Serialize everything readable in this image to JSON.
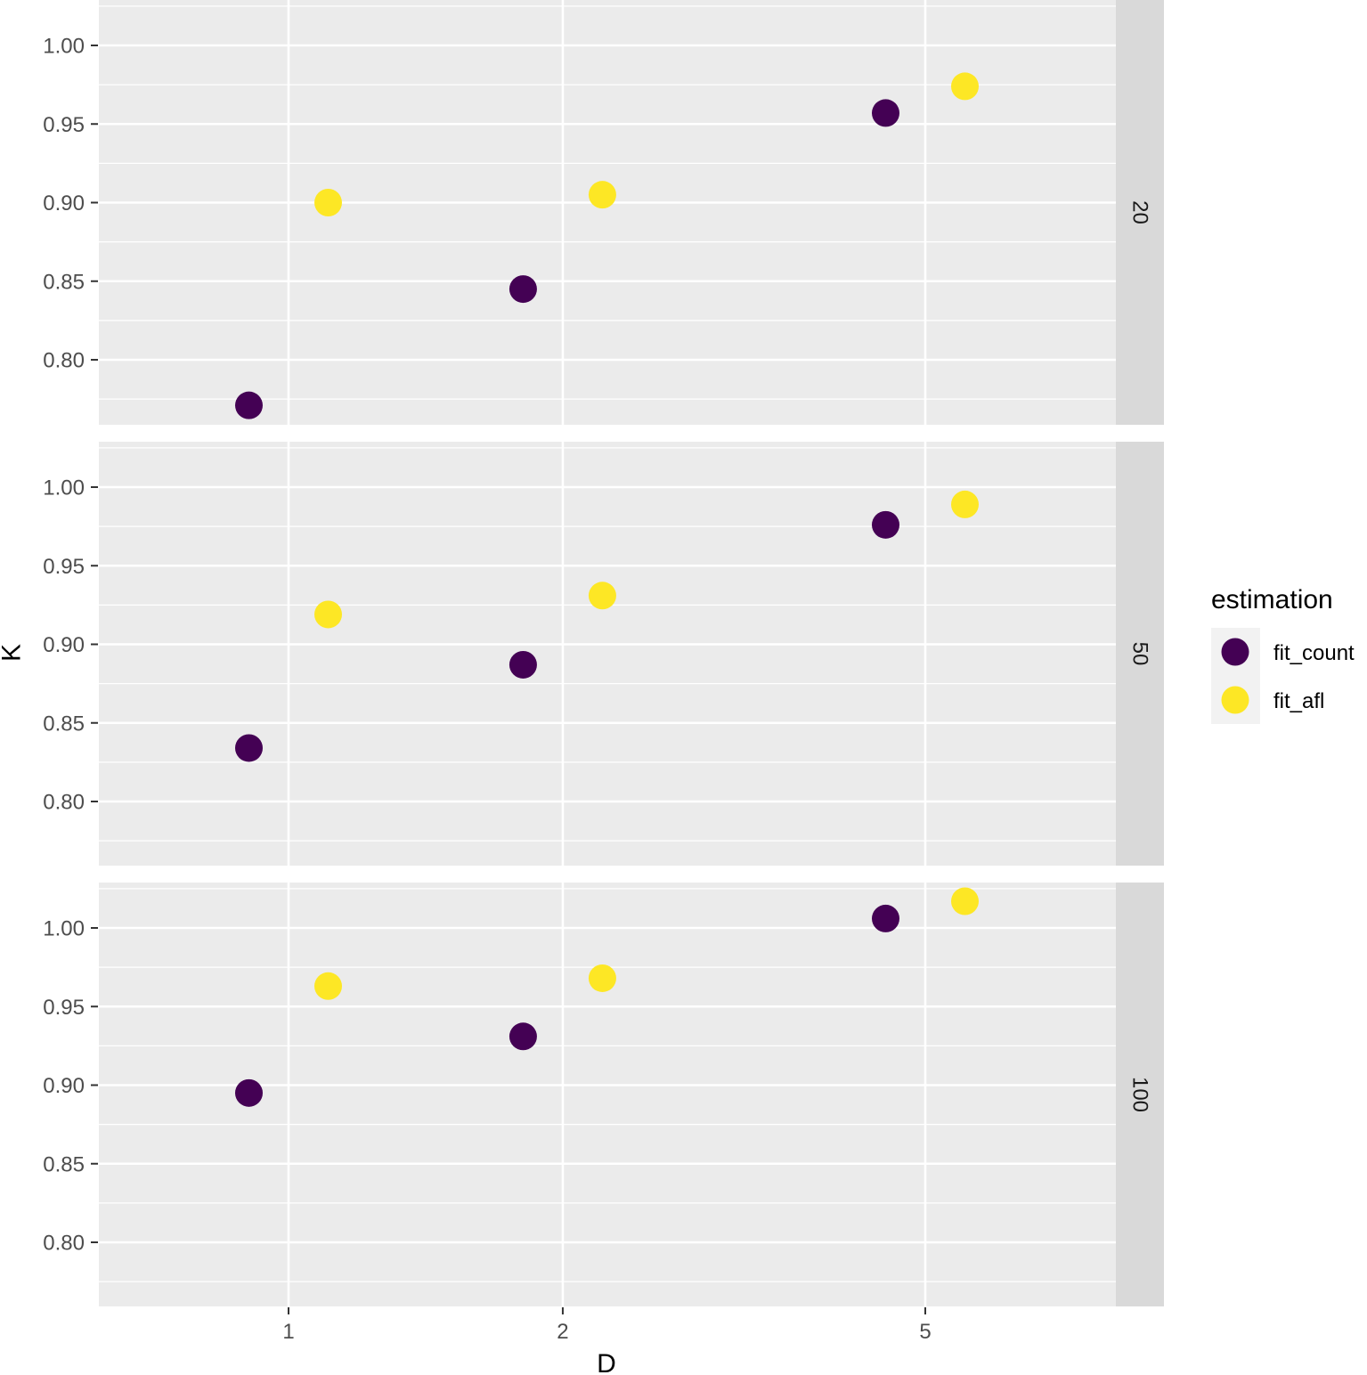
{
  "chart_data": {
    "type": "scatter",
    "title": "",
    "xlabel": "D",
    "ylabel": "K",
    "x_scale": "log",
    "x_categories": [
      "1",
      "2",
      "5"
    ],
    "y_ticks": [
      "0.80",
      "0.85",
      "0.90",
      "0.95",
      "1.00"
    ],
    "ylim": [
      0.76,
      1.03
    ],
    "grid": true,
    "facet_position": "right",
    "legend": {
      "title": "estimation",
      "position": "right"
    },
    "series": [
      {
        "name": "fit_count",
        "color": "#440154",
        "x_offset_side": "left"
      },
      {
        "name": "fit_afl",
        "color": "#FDE725",
        "x_offset_side": "right"
      }
    ],
    "panels": [
      {
        "strip": "20",
        "points": {
          "fit_count": [
            0.771,
            0.845,
            0.957
          ],
          "fit_afl": [
            0.9,
            0.905,
            0.974
          ]
        }
      },
      {
        "strip": "50",
        "points": {
          "fit_count": [
            0.834,
            0.887,
            0.976
          ],
          "fit_afl": [
            0.919,
            0.931,
            0.989
          ]
        }
      },
      {
        "strip": "100",
        "points": {
          "fit_count": [
            0.895,
            0.931,
            1.006
          ],
          "fit_afl": [
            0.963,
            0.968,
            1.017
          ]
        }
      }
    ]
  }
}
